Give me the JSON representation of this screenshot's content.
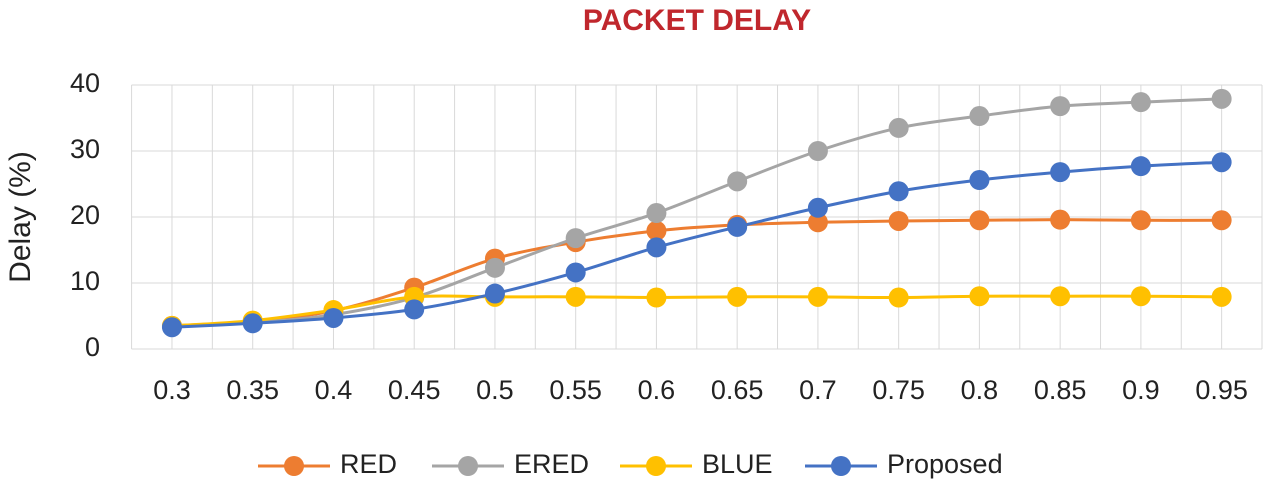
{
  "chart_data": {
    "type": "line",
    "title": "PACKET DELAY",
    "y_label": "Delay (%)",
    "categories": [
      "0.3",
      "0.35",
      "0.4",
      "0.45",
      "0.5",
      "0.55",
      "0.6",
      "0.65",
      "0.7",
      "0.75",
      "0.8",
      "0.85",
      "0.9",
      "0.95"
    ],
    "series": [
      {
        "name": "RED",
        "color": "#ed7d31",
        "values": [
          3.5,
          4.2,
          5.8,
          9.3,
          13.7,
          16.2,
          17.9,
          18.8,
          19.2,
          19.4,
          19.5,
          19.6,
          19.5,
          19.5
        ]
      },
      {
        "name": "ERED",
        "color": "#a5a5a5",
        "values": [
          3.4,
          4.0,
          5.2,
          7.8,
          12.3,
          16.8,
          20.6,
          25.4,
          30.0,
          33.5,
          35.3,
          36.8,
          37.4,
          37.9
        ]
      },
      {
        "name": "BLUE",
        "color": "#ffc000",
        "values": [
          3.5,
          4.3,
          5.9,
          7.9,
          7.9,
          7.9,
          7.8,
          7.9,
          7.9,
          7.8,
          8.0,
          8.0,
          8.0,
          7.9
        ]
      },
      {
        "name": "Proposed",
        "color": "#4472c4",
        "values": [
          3.3,
          3.9,
          4.7,
          6.0,
          8.4,
          11.6,
          15.4,
          18.5,
          21.4,
          23.9,
          25.6,
          26.8,
          27.7,
          28.3
        ]
      }
    ],
    "ylim": [
      0,
      40
    ],
    "yticks": [
      0,
      10,
      20,
      30,
      40
    ],
    "grid": true,
    "legend": "bottom"
  }
}
